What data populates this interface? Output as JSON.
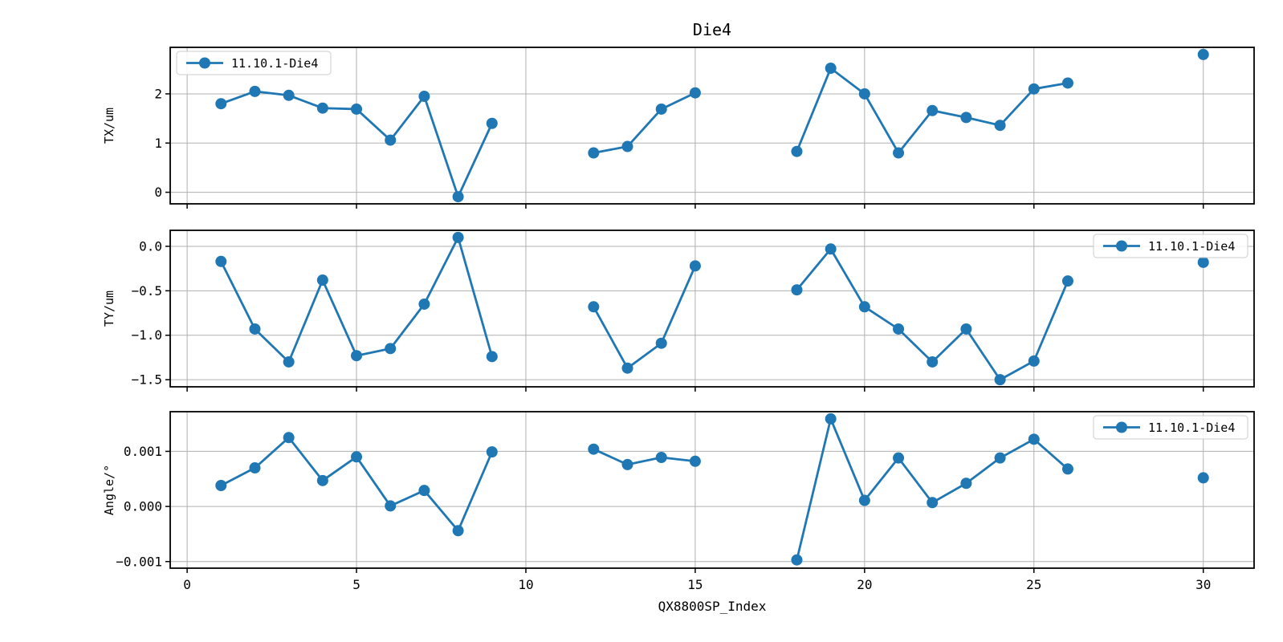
{
  "figure": {
    "title": "Die4",
    "xlabel": "QX8800SP_Index",
    "line_color": "#1f77b4",
    "grid_color": "#b0b0b0",
    "spine_color": "#000000",
    "background_color": "#ffffff",
    "xlim": [
      -0.5,
      31.5
    ],
    "xticks": [
      {
        "v": 0,
        "label": "0"
      },
      {
        "v": 5,
        "label": "5"
      },
      {
        "v": 10,
        "label": "10"
      },
      {
        "v": 15,
        "label": "15"
      },
      {
        "v": 20,
        "label": "20"
      },
      {
        "v": 25,
        "label": "25"
      },
      {
        "v": 30,
        "label": "30"
      }
    ]
  },
  "chart_data": [
    {
      "type": "line",
      "title": "Die4",
      "xlabel": "QX8800SP_Index",
      "ylabel": "TX/um",
      "legend_label": "11.10.1-Die4",
      "legend_position": "top-left",
      "grid": true,
      "ylim": [
        -0.235,
        2.945
      ],
      "yticks": [
        {
          "v": 2,
          "label": "2"
        },
        {
          "v": 1,
          "label": "1"
        },
        {
          "v": 0,
          "label": "0"
        }
      ],
      "segments": [
        {
          "x": [
            1,
            2,
            3,
            4,
            5,
            6,
            7,
            8,
            9
          ],
          "y": [
            1.8,
            2.05,
            1.97,
            1.71,
            1.69,
            1.06,
            1.95,
            -0.09,
            1.4
          ]
        },
        {
          "x": [
            12,
            13,
            14,
            15
          ],
          "y": [
            0.8,
            0.93,
            1.69,
            2.02
          ]
        },
        {
          "x": [
            18,
            19,
            20,
            21,
            22,
            23,
            24,
            25,
            26
          ],
          "y": [
            0.83,
            2.52,
            2.0,
            0.8,
            1.66,
            1.52,
            1.36,
            2.1,
            2.22
          ]
        },
        {
          "x": [
            30
          ],
          "y": [
            2.8
          ]
        }
      ]
    },
    {
      "type": "line",
      "ylabel": "TY/um",
      "legend_label": "11.10.1-Die4",
      "legend_position": "top-right",
      "grid": true,
      "ylim": [
        -1.58,
        0.18
      ],
      "yticks": [
        {
          "v": 0.0,
          "label": "0.0"
        },
        {
          "v": -0.5,
          "label": "−0.5"
        },
        {
          "v": -1.0,
          "label": "−1.0"
        },
        {
          "v": -1.5,
          "label": "−1.5"
        }
      ],
      "segments": [
        {
          "x": [
            1,
            2,
            3,
            4,
            5,
            6,
            7,
            8,
            9
          ],
          "y": [
            -0.17,
            -0.93,
            -1.3,
            -0.38,
            -1.23,
            -1.15,
            -0.65,
            0.1,
            -1.24
          ]
        },
        {
          "x": [
            12,
            13,
            14,
            15
          ],
          "y": [
            -0.68,
            -1.37,
            -1.09,
            -0.22
          ]
        },
        {
          "x": [
            18,
            19,
            20,
            21,
            22,
            23,
            24,
            25,
            26
          ],
          "y": [
            -0.49,
            -0.03,
            -0.68,
            -0.93,
            -1.3,
            -0.93,
            -1.5,
            -1.29,
            -0.39
          ]
        },
        {
          "x": [
            30
          ],
          "y": [
            -0.18
          ]
        }
      ]
    },
    {
      "type": "line",
      "ylabel": "Angle/°",
      "legend_label": "11.10.1-Die4",
      "legend_position": "top-right",
      "grid": true,
      "ylim": [
        -0.00112,
        0.00172
      ],
      "yticks": [
        {
          "v": 0.001,
          "label": "0.001"
        },
        {
          "v": 0.0,
          "label": "0.000"
        },
        {
          "v": -0.001,
          "label": "−0.001"
        }
      ],
      "segments": [
        {
          "x": [
            1,
            2,
            3,
            4,
            5,
            6,
            7,
            8,
            9
          ],
          "y": [
            0.00038,
            0.0007,
            0.00125,
            0.00047,
            0.0009,
            1e-05,
            0.00029,
            -0.00044,
            0.00099
          ]
        },
        {
          "x": [
            12,
            13,
            14,
            15
          ],
          "y": [
            0.00104,
            0.00076,
            0.00089,
            0.00082
          ]
        },
        {
          "x": [
            18,
            19,
            20,
            21,
            22,
            23,
            24,
            25,
            26
          ],
          "y": [
            -0.00097,
            0.00159,
            0.00011,
            0.00088,
            7e-05,
            0.00042,
            0.00088,
            0.00122,
            0.00068
          ]
        },
        {
          "x": [
            30
          ],
          "y": [
            0.00052
          ]
        }
      ]
    }
  ]
}
